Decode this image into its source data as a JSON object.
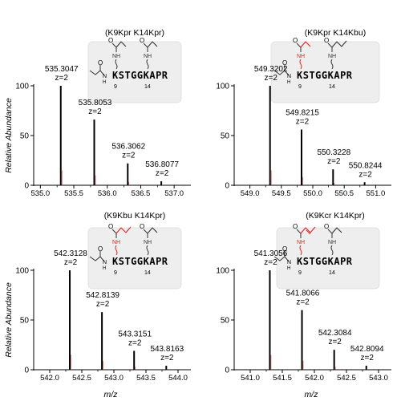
{
  "shared": {
    "ylabel": "Relative Abundance",
    "xlabel": "m/z",
    "y_ticks": [
      "0",
      "50",
      "100"
    ]
  },
  "colors": {
    "peak": "#000000",
    "modified_bond": "#e02020",
    "structure_box": "#eeeeee",
    "structure_border": "#cccccc"
  },
  "chart_data": [
    {
      "type": "bar",
      "title": "(K9Kpr K14Kpr)",
      "xlim": [
        534.9,
        537.25
      ],
      "ylim": [
        0,
        100
      ],
      "x_ticks": [
        "535.0",
        "535.5",
        "536.0",
        "536.5",
        "537.0"
      ],
      "peaks": [
        {
          "mz": 535.3047,
          "rel": 100,
          "mz_label": "535.3047",
          "z_label": "z=2"
        },
        {
          "mz": 535.8053,
          "rel": 66,
          "mz_label": "535.8053",
          "z_label": "z=2"
        },
        {
          "mz": 536.3062,
          "rel": 22,
          "mz_label": "536.3062",
          "z_label": "z=2"
        },
        {
          "mz": 536.8077,
          "rel": 4,
          "mz_label": "536.8077",
          "z_label": "z=2"
        }
      ],
      "structure": {
        "sequence": "KSTGGKAPR",
        "pos_a": "9",
        "pos_b": "14",
        "mod_a": "propionyl",
        "mod_b": "propionyl",
        "mod_a_red": false,
        "mod_b_red": false
      }
    },
    {
      "type": "bar",
      "title": "(K9Kpr K14Kbu)",
      "xlim": [
        548.75,
        551.25
      ],
      "ylim": [
        0,
        100
      ],
      "x_ticks": [
        "549.0",
        "549.5",
        "550.0",
        "550.5",
        "551.0"
      ],
      "peaks": [
        {
          "mz": 549.3202,
          "rel": 100,
          "mz_label": "549.3202",
          "z_label": "z=2"
        },
        {
          "mz": 549.8215,
          "rel": 56,
          "mz_label": "549.8215",
          "z_label": "z=2"
        },
        {
          "mz": 550.3228,
          "rel": 16,
          "mz_label": "550.3228",
          "z_label": "z=2"
        },
        {
          "mz": 550.8244,
          "rel": 3,
          "mz_label": "550.8244",
          "z_label": "z=2"
        }
      ],
      "structure": {
        "sequence": "KSTGGKAPR",
        "pos_a": "9",
        "pos_b": "14",
        "mod_a": "propionyl",
        "mod_b": "butyryl",
        "mod_a_red": true,
        "mod_b_red": false
      }
    },
    {
      "type": "bar",
      "title": "(K9Kbu K14Kpr)",
      "xlim": [
        541.75,
        544.2
      ],
      "ylim": [
        0,
        100
      ],
      "x_ticks": [
        "542.0",
        "542.5",
        "543.0",
        "543.5",
        "544.0"
      ],
      "peaks": [
        {
          "mz": 542.3128,
          "rel": 100,
          "mz_label": "542.3128",
          "z_label": "z=2"
        },
        {
          "mz": 542.8139,
          "rel": 58,
          "mz_label": "542.8139",
          "z_label": "z=2"
        },
        {
          "mz": 543.3151,
          "rel": 19,
          "mz_label": "543.3151",
          "z_label": "z=2"
        },
        {
          "mz": 543.8163,
          "rel": 4,
          "mz_label": "543.8163",
          "z_label": "z=2"
        }
      ],
      "structure": {
        "sequence": "KSTGGKAPR",
        "pos_a": "9",
        "pos_b": "14",
        "mod_a": "butyryl",
        "mod_b": "propionyl",
        "mod_a_red": true,
        "mod_b_red": false
      }
    },
    {
      "type": "bar",
      "title": "(K9Kcr K14Kpr)",
      "xlim": [
        540.75,
        543.2
      ],
      "ylim": [
        0,
        100
      ],
      "x_ticks": [
        "541.0",
        "541.5",
        "542.0",
        "542.5",
        "543.0"
      ],
      "peaks": [
        {
          "mz": 541.3056,
          "rel": 100,
          "mz_label": "541.3056",
          "z_label": "z=2"
        },
        {
          "mz": 541.8066,
          "rel": 60,
          "mz_label": "541.8066",
          "z_label": "z=2"
        },
        {
          "mz": 542.3084,
          "rel": 20,
          "mz_label": "542.3084",
          "z_label": "z=2"
        },
        {
          "mz": 542.8094,
          "rel": 4,
          "mz_label": "542.8094",
          "z_label": "z=2"
        }
      ],
      "structure": {
        "sequence": "KSTGGKAPR",
        "pos_a": "9",
        "pos_b": "14",
        "mod_a": "crotonyl",
        "mod_b": "propionyl",
        "mod_a_red": true,
        "mod_b_red": false
      }
    }
  ]
}
